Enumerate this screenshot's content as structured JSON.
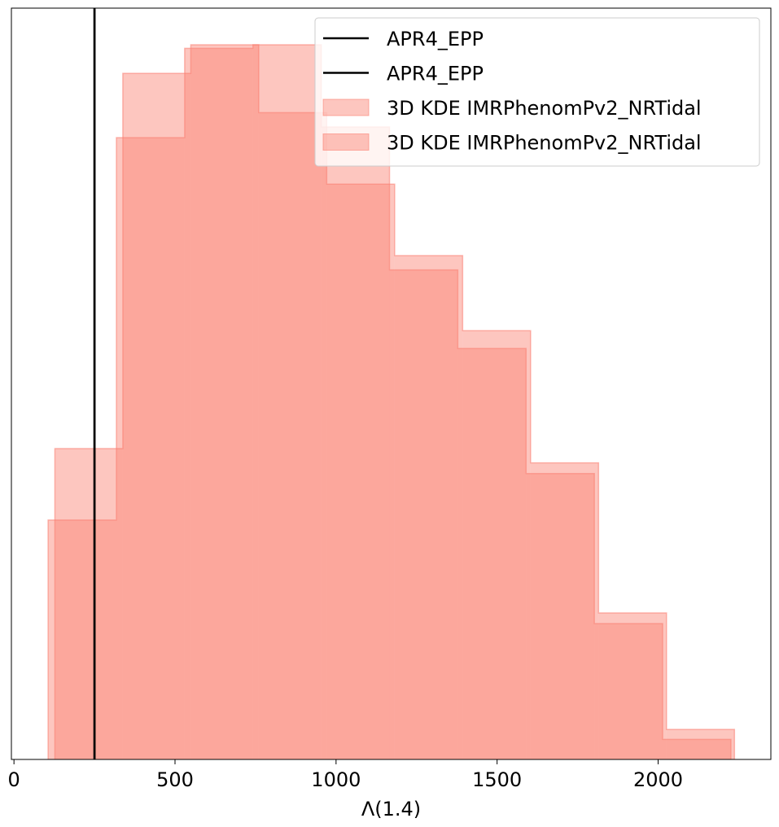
{
  "chart_data": {
    "type": "histogram",
    "title": "",
    "xlabel": "Λ(1.4)",
    "ylabel": "",
    "xlim": [
      -8,
      2350
    ],
    "ylim": [
      0,
      1.0
    ],
    "x_ticks": [
      0,
      500,
      1000,
      1500,
      2000
    ],
    "x_tick_labels": [
      "0",
      "500",
      "1000",
      "1500",
      "2000"
    ],
    "y_ticks_shown": false,
    "grid": false,
    "legend_position": "top-right",
    "vertical_lines": [
      {
        "name": "APR4_EPP",
        "x": 250,
        "color": "#000000"
      },
      {
        "name": "APR4_EPP",
        "x": 250,
        "color": "#000000"
      }
    ],
    "series": [
      {
        "name": "3D KDE IMRPhenomPv2_NRTidal",
        "color": "#fa8072",
        "opacity": 0.45,
        "bin_edges": [
          127,
          338,
          549,
          760,
          971,
          1182,
          1393,
          1604,
          1815,
          2026,
          2237
        ],
        "values": [
          0.435,
          0.96,
          1.0,
          0.905,
          0.805,
          0.705,
          0.6,
          0.415,
          0.205,
          0.042
        ]
      },
      {
        "name": "3D KDE IMRPhenomPv2_NRTidal",
        "color": "#fa8072",
        "opacity": 0.45,
        "bin_edges": [
          106,
          318,
          530,
          742,
          954,
          1166,
          1378,
          1590,
          1802,
          2014,
          2226
        ],
        "values": [
          0.335,
          0.87,
          0.995,
          1.0,
          0.885,
          0.685,
          0.575,
          0.4,
          0.19,
          0.028
        ]
      }
    ]
  }
}
